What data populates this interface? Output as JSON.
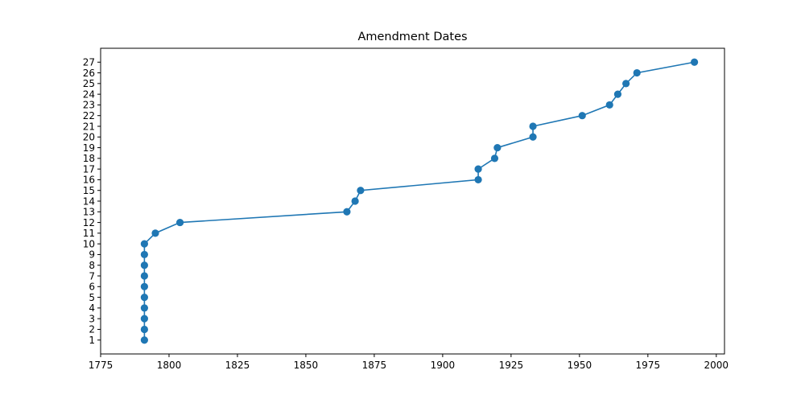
{
  "chart_data": {
    "type": "line",
    "title": "Amendment Dates",
    "xlabel": "",
    "ylabel": "",
    "xlim": [
      1775,
      2003
    ],
    "ylim": [
      -0.3,
      28.3
    ],
    "xticks": [
      1775,
      1800,
      1825,
      1850,
      1875,
      1900,
      1925,
      1950,
      1975,
      2000
    ],
    "yticks": [
      1,
      2,
      3,
      4,
      5,
      6,
      7,
      8,
      9,
      10,
      11,
      12,
      13,
      14,
      15,
      16,
      17,
      18,
      19,
      20,
      21,
      22,
      23,
      24,
      25,
      26,
      27
    ],
    "grid": false,
    "line_color": "#1f77b4",
    "marker": "circle",
    "series": [
      {
        "x": [
          1791,
          1791,
          1791,
          1791,
          1791,
          1791,
          1791,
          1791,
          1791,
          1791,
          1795,
          1804,
          1865,
          1868,
          1870,
          1913,
          1913,
          1919,
          1920,
          1933,
          1933,
          1951,
          1961,
          1964,
          1967,
          1971,
          1992
        ],
        "y": [
          1,
          2,
          3,
          4,
          5,
          6,
          7,
          8,
          9,
          10,
          11,
          12,
          13,
          14,
          15,
          16,
          17,
          18,
          19,
          20,
          21,
          22,
          23,
          24,
          25,
          26,
          27
        ]
      }
    ]
  }
}
